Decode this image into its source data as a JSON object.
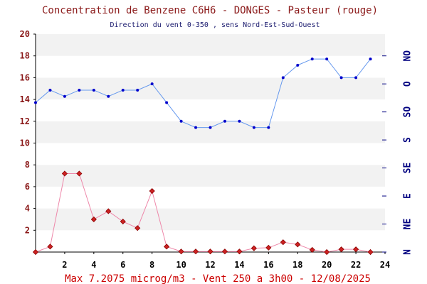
{
  "title": "Concentration de Benzene C6H6  -   DONGES - Pasteur (rouge)",
  "subtitle": "Direction du vent 0-350 , sens Nord-Est-Sud-Ouest",
  "footer": "Max 7.2075 microg/m3 - Vent 250  a 3h00 - 12/08/2025",
  "chart_data": {
    "type": "line",
    "title": "Concentration de Benzene C6H6  -   DONGES - Pasteur (rouge)",
    "subtitle": "Direction du vent 0-350 , sens Nord-Est-Sud-Ouest",
    "xlabel": "",
    "ylabel": "",
    "xlim": [
      0,
      24
    ],
    "ylim": [
      0,
      20
    ],
    "x_ticks": [
      "2",
      "4",
      "6",
      "8",
      "10",
      "12",
      "14",
      "16",
      "18",
      "20",
      "22",
      "24"
    ],
    "y_ticks": [
      "2",
      "4",
      "6",
      "8",
      "10",
      "12",
      "14",
      "16",
      "18",
      "20"
    ],
    "right_axis": {
      "label_ticks": [
        "N",
        "NE",
        "E",
        "SE",
        "S",
        "SO",
        "O",
        "NO"
      ],
      "range": [
        0,
        350
      ],
      "tick_values": [
        0,
        45,
        90,
        135,
        180,
        225,
        270,
        315
      ]
    },
    "grid": "horizontal-bands",
    "series": [
      {
        "axis": "left",
        "color": "#cc2222",
        "line_color": "#ee88aa",
        "marker": "diamond",
        "x": [
          0,
          1,
          2,
          3,
          4,
          5,
          6,
          7,
          8,
          9,
          10,
          11,
          12,
          13,
          14,
          15,
          16,
          17,
          18,
          19,
          20,
          21,
          22,
          23
        ],
        "values": [
          0.0,
          0.5,
          7.2,
          7.2,
          3.0,
          3.75,
          2.8,
          2.2,
          5.6,
          0.5,
          0.05,
          0.05,
          0.05,
          0.05,
          0.05,
          0.35,
          0.4,
          0.9,
          0.7,
          0.2,
          0.0,
          0.25,
          0.25,
          0.0
        ]
      },
      {
        "axis": "right",
        "color": "#0000cc",
        "line_color": "#6699ee",
        "marker": "dot",
        "x": [
          0,
          1,
          2,
          3,
          4,
          5,
          6,
          7,
          8,
          9,
          10,
          11,
          12,
          13,
          14,
          15,
          16,
          17,
          18,
          19,
          20,
          21,
          22,
          23
        ],
        "values": [
          240,
          260,
          250,
          260,
          260,
          250,
          260,
          260,
          270,
          240,
          210,
          200,
          200,
          210,
          210,
          200,
          200,
          280,
          300,
          310,
          310,
          280,
          280,
          310
        ]
      }
    ]
  }
}
